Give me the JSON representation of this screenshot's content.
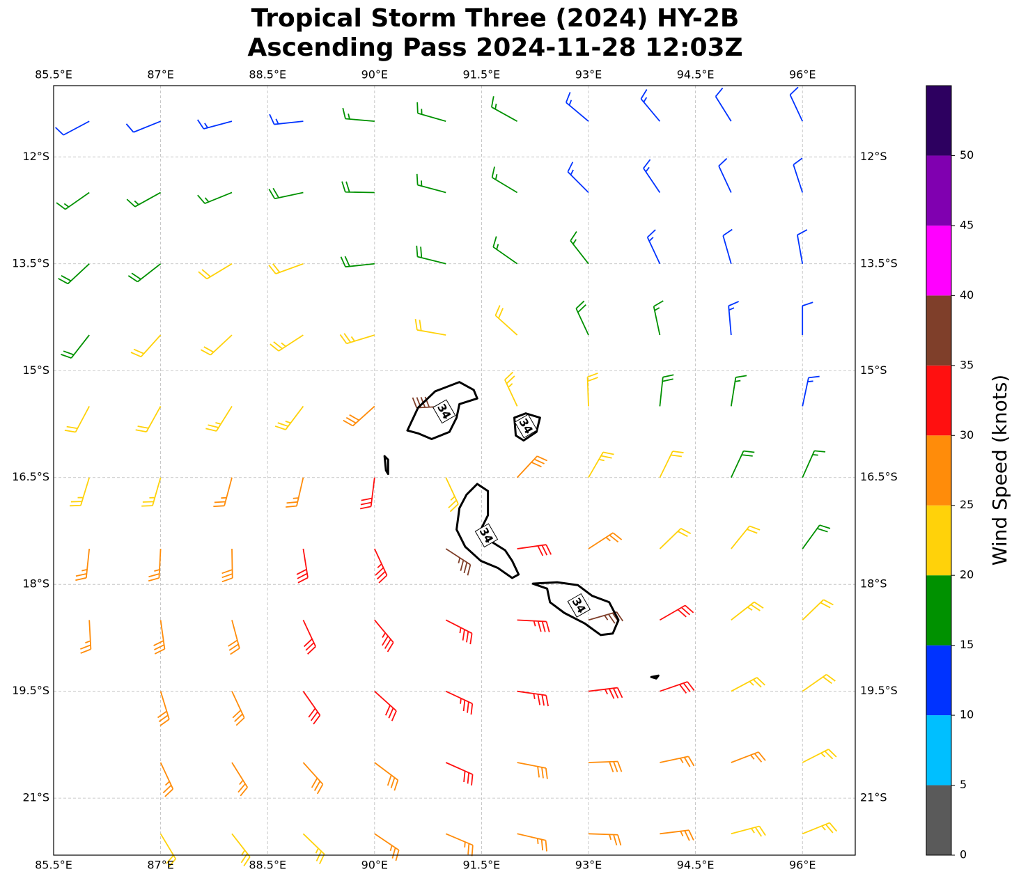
{
  "chart_data": {
    "type": "barbs",
    "title": [
      "Tropical Storm Three (2024) HY-2B",
      "Ascending Pass 2024-11-28 12:03Z"
    ],
    "xlim": [
      85.5,
      96.74
    ],
    "ylim": [
      -21.8,
      -11.0
    ],
    "xticks": [
      {
        "value": 85.5,
        "label": "85.5°E"
      },
      {
        "value": 87,
        "label": "87°E"
      },
      {
        "value": 88.5,
        "label": "88.5°E"
      },
      {
        "value": 90,
        "label": "90°E"
      },
      {
        "value": 91.5,
        "label": "91.5°E"
      },
      {
        "value": 93,
        "label": "93°E"
      },
      {
        "value": 94.5,
        "label": "94.5°E"
      },
      {
        "value": 96,
        "label": "96°E"
      }
    ],
    "yticks": [
      {
        "value": -12,
        "label": "12°S"
      },
      {
        "value": -13.5,
        "label": "13.5°S"
      },
      {
        "value": -15,
        "label": "15°S"
      },
      {
        "value": -16.5,
        "label": "16.5°S"
      },
      {
        "value": -18,
        "label": "18°S"
      },
      {
        "value": -19.5,
        "label": "19.5°S"
      },
      {
        "value": -21,
        "label": "21°S"
      }
    ],
    "grid": true,
    "lon": [
      86,
      87,
      88,
      89,
      90,
      91,
      92,
      93,
      94,
      95,
      96
    ],
    "lat": [
      -11.5,
      -12.5,
      -13.5,
      -14.5,
      -15.5,
      -16.5,
      -17.5,
      -18.5,
      -19.5,
      -20.5,
      -21.5
    ],
    "speed": [
      [
        12,
        12,
        13,
        14,
        16,
        17,
        17,
        14,
        13,
        12,
        11
      ],
      [
        16,
        17,
        17,
        18,
        18,
        17,
        16,
        14,
        13,
        12,
        11
      ],
      [
        18,
        19,
        21,
        22,
        19,
        18,
        17,
        16,
        13,
        12,
        11
      ],
      [
        19,
        21,
        22,
        23,
        23,
        21,
        20,
        18,
        16,
        13,
        12
      ],
      [
        22,
        22,
        23,
        24,
        28,
        38,
        24,
        22,
        19,
        16,
        14
      ],
      [
        23,
        24,
        25,
        26,
        32,
        24,
        28,
        24,
        20,
        18,
        17
      ],
      [
        26,
        27,
        28,
        30,
        33,
        36,
        31,
        26,
        22,
        20,
        18
      ],
      [
        27,
        28,
        29,
        32,
        33,
        33,
        34,
        36,
        30,
        24,
        22
      ],
      [
        null,
        28,
        29,
        30,
        32,
        33,
        33,
        33,
        31,
        24,
        22
      ],
      [
        null,
        26,
        27,
        28,
        28,
        30,
        29,
        28,
        27,
        26,
        24
      ],
      [
        null,
        22,
        24,
        24,
        26,
        27,
        27,
        26,
        25,
        24,
        23
      ]
    ],
    "direction": [
      [
        242,
        248,
        255,
        264,
        275,
        286,
        299,
        310,
        320,
        328,
        335
      ],
      [
        235,
        241,
        248,
        258,
        271,
        285,
        301,
        315,
        326,
        335,
        342
      ],
      [
        227,
        232,
        239,
        250,
        264,
        284,
        305,
        322,
        335,
        344,
        350
      ],
      [
        218,
        222,
        227,
        237,
        253,
        280,
        312,
        335,
        348,
        355,
        0
      ],
      [
        208,
        209,
        212,
        217,
        228,
        267,
        335,
        358,
        6,
        9,
        12
      ],
      [
        197,
        196,
        195,
        193,
        187,
        155,
        43,
        30,
        26,
        25,
        24
      ],
      [
        186,
        183,
        179,
        171,
        155,
        123,
        82,
        57,
        46,
        39,
        36
      ],
      [
        177,
        172,
        165,
        155,
        140,
        117,
        93,
        74,
        60,
        52,
        46
      ],
      [
        null,
        163,
        155,
        145,
        132,
        115,
        98,
        83,
        71,
        62,
        55
      ],
      [
        null,
        155,
        148,
        138,
        127,
        114,
        101,
        88,
        78,
        69,
        63
      ],
      [
        null,
        149,
        142,
        134,
        124,
        113,
        103,
        92,
        83,
        75,
        68
      ]
    ],
    "contour_level": 34,
    "contours": [
      {
        "labeled": true,
        "lon": [
          90.46,
          90.61,
          90.85,
          91.19,
          91.39,
          91.44,
          91.19,
          91.15,
          91.05,
          90.8,
          90.61
        ],
        "lat": [
          -15.84,
          -15.52,
          -15.29,
          -15.16,
          -15.27,
          -15.39,
          -15.47,
          -15.66,
          -15.86,
          -15.96,
          -15.88
        ]
      },
      {
        "labeled": true,
        "lon": [
          91.96,
          92.12,
          92.32,
          92.27,
          92.09,
          91.98
        ],
        "lat": [
          -15.66,
          -15.6,
          -15.66,
          -15.86,
          -15.98,
          -15.91
        ]
      },
      {
        "labeled": true,
        "lon": [
          91.44,
          91.59,
          91.59,
          91.49,
          91.59,
          91.83,
          91.93,
          92.02,
          91.93,
          91.73,
          91.49,
          91.27,
          91.15,
          91.19,
          91.29
        ],
        "lat": [
          -16.59,
          -16.69,
          -17.03,
          -17.23,
          -17.37,
          -17.52,
          -17.67,
          -17.86,
          -17.91,
          -17.77,
          -17.67,
          -17.47,
          -17.23,
          -16.93,
          -16.74
        ]
      },
      {
        "labeled": true,
        "lon": [
          92.22,
          92.56,
          92.85,
          93.05,
          93.29,
          93.42,
          93.34,
          93.17,
          92.95,
          92.66,
          92.46,
          92.42
        ],
        "lat": [
          -17.99,
          -17.97,
          -18.01,
          -18.16,
          -18.25,
          -18.5,
          -18.69,
          -18.71,
          -18.55,
          -18.4,
          -18.25,
          -18.06
        ]
      },
      {
        "labeled": false,
        "lon": [
          90.14,
          90.19,
          90.19,
          90.16
        ],
        "lat": [
          -16.2,
          -16.25,
          -16.45,
          -16.4
        ]
      },
      {
        "labeled": false,
        "lon": [
          93.88,
          93.98,
          93.95
        ],
        "lat": [
          -19.3,
          -19.28,
          -19.32
        ]
      }
    ],
    "colorbar": {
      "label": "Wind Speed (knots)",
      "clim": [
        0,
        55
      ],
      "ticks": [
        0,
        5,
        10,
        15,
        20,
        25,
        30,
        35,
        40,
        45,
        50
      ],
      "colors": [
        "#5a5a5a",
        "#00bfff",
        "#0033ff",
        "#009100",
        "#ffd20a",
        "#ff8c0a",
        "#ff1010",
        "#7f3f2a",
        "#ff00ff",
        "#8000b0",
        "#2d0060"
      ]
    }
  }
}
